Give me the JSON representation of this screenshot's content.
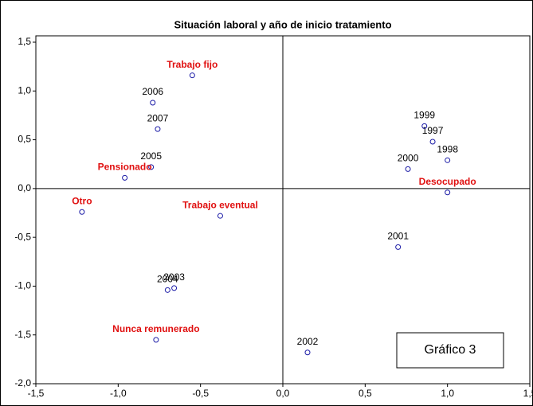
{
  "chart_data": {
    "type": "scatter",
    "title": "Situación laboral y año de inicio tratamiento",
    "annotation": "Gráfico 3",
    "xlim": [
      -1.5,
      1.5
    ],
    "ylim": [
      -2.0,
      1.5
    ],
    "xticks": [
      {
        "value": -1.5,
        "label": "-1,5"
      },
      {
        "value": -1.0,
        "label": "-1,0"
      },
      {
        "value": -0.5,
        "label": "-0,5"
      },
      {
        "value": 0.0,
        "label": "0,0"
      },
      {
        "value": 0.5,
        "label": "0,5"
      },
      {
        "value": 1.0,
        "label": "1,0"
      },
      {
        "value": 1.5,
        "label": "1,5"
      }
    ],
    "yticks": [
      {
        "value": 1.5,
        "label": "1,5"
      },
      {
        "value": 1.0,
        "label": "1,0"
      },
      {
        "value": 0.5,
        "label": "0,5"
      },
      {
        "value": 0.0,
        "label": "0,0"
      },
      {
        "value": -0.5,
        "label": "-0,5"
      },
      {
        "value": -1.0,
        "label": "-1,0"
      },
      {
        "value": -1.5,
        "label": "-1,5"
      },
      {
        "value": -2.0,
        "label": "-2,0"
      }
    ],
    "grid": false,
    "series": [
      {
        "marker_color": "#1a1aa6",
        "label_color": "#000000",
        "label_bold": false,
        "labels": [
          "1997",
          "1998",
          "1999",
          "2000",
          "2001",
          "2002",
          "2003",
          "2004",
          "2005",
          "2006",
          "2007"
        ],
        "x": [
          0.91,
          1.0,
          0.86,
          0.76,
          0.7,
          0.15,
          -0.66,
          -0.7,
          -0.8,
          -0.79,
          -0.76
        ],
        "values": [
          0.48,
          0.29,
          0.64,
          0.2,
          -0.6,
          -1.68,
          -1.02,
          -1.04,
          0.22,
          0.88,
          0.61
        ]
      },
      {
        "marker_color": "#1a1aa6",
        "label_color": "#e01010",
        "label_bold": true,
        "labels": [
          "Trabajo fijo",
          "Pensionado",
          "Otro",
          "Trabajo eventual",
          "Nunca remunerado",
          "Desocupado"
        ],
        "x": [
          -0.55,
          -0.96,
          -1.22,
          -0.38,
          -0.77,
          1.0
        ],
        "values": [
          1.16,
          0.11,
          -0.24,
          -0.28,
          -1.55,
          -0.04
        ]
      }
    ]
  }
}
